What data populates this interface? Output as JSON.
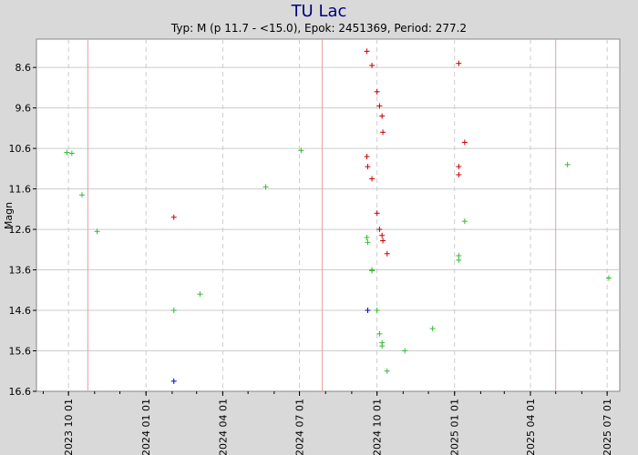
{
  "chart_data": {
    "type": "scatter",
    "title": "TU Lac",
    "subtitle": "Typ: M (p 11.7 - <15.0), Epok: 2451369, Period: 277.2",
    "xlabel": "",
    "ylabel": "Magn",
    "x_axis": "date",
    "xlim": [
      "2023-08-24",
      "2025-07-16"
    ],
    "ylim": [
      16.6,
      7.9
    ],
    "y_inverted": true,
    "grid": true,
    "x_ticks": [
      "2023 10 01",
      "2024 01 01",
      "2024 04 01",
      "2024 07 01",
      "2024 10 01",
      "2025 01 01",
      "2025 04 01",
      "2025 07 01"
    ],
    "x_tick_dates": [
      "2023-10-01",
      "2024-01-01",
      "2024-04-01",
      "2024-07-01",
      "2024-10-01",
      "2025-01-01",
      "2025-04-01",
      "2025-07-01"
    ],
    "y_ticks": [
      "8.6",
      "9.6",
      "10.6",
      "11.6",
      "12.6",
      "13.6",
      "14.6",
      "15.6",
      "16.6"
    ],
    "y_tick_values": [
      8.6,
      9.6,
      10.6,
      11.6,
      12.6,
      13.6,
      14.6,
      15.6,
      16.6
    ],
    "maxima_dates": [
      "2023-10-24",
      "2024-07-28",
      "2025-05-01"
    ],
    "colors": {
      "red": "#c80000",
      "green": "#33bb33",
      "blue": "#0000cc",
      "maxima": "#e8a0a0",
      "grid": "#cccccc"
    },
    "series": [
      {
        "color": "red",
        "points": [
          {
            "x": "2024-02-03",
            "y": 12.3
          },
          {
            "x": "2024-09-19",
            "y": 8.2
          },
          {
            "x": "2024-09-19",
            "y": 10.8
          },
          {
            "x": "2024-09-20",
            "y": 11.05
          },
          {
            "x": "2024-09-25",
            "y": 8.55
          },
          {
            "x": "2024-09-25",
            "y": 11.35
          },
          {
            "x": "2024-10-01",
            "y": 9.2
          },
          {
            "x": "2024-10-01",
            "y": 12.2
          },
          {
            "x": "2024-10-04",
            "y": 9.55
          },
          {
            "x": "2024-10-04",
            "y": 12.6
          },
          {
            "x": "2024-10-07",
            "y": 9.8
          },
          {
            "x": "2024-10-07",
            "y": 12.75
          },
          {
            "x": "2024-10-08",
            "y": 10.2
          },
          {
            "x": "2024-10-08",
            "y": 12.88
          },
          {
            "x": "2024-10-13",
            "y": 13.2
          },
          {
            "x": "2025-01-06",
            "y": 8.5
          },
          {
            "x": "2025-01-06",
            "y": 11.05
          },
          {
            "x": "2025-01-06",
            "y": 11.25
          },
          {
            "x": "2025-01-13",
            "y": 10.45
          }
        ]
      },
      {
        "color": "green",
        "points": [
          {
            "x": "2023-09-29",
            "y": 10.7
          },
          {
            "x": "2023-10-05",
            "y": 10.72
          },
          {
            "x": "2023-10-17",
            "y": 11.75
          },
          {
            "x": "2023-11-04",
            "y": 12.65
          },
          {
            "x": "2024-02-03",
            "y": 14.6
          },
          {
            "x": "2024-03-05",
            "y": 14.2
          },
          {
            "x": "2024-05-22",
            "y": 11.55
          },
          {
            "x": "2024-07-03",
            "y": 10.65
          },
          {
            "x": "2024-09-19",
            "y": 12.8
          },
          {
            "x": "2024-09-20",
            "y": 12.92
          },
          {
            "x": "2024-09-25",
            "y": 13.6
          },
          {
            "x": "2024-09-25",
            "y": 13.62
          },
          {
            "x": "2024-10-01",
            "y": 14.6
          },
          {
            "x": "2024-10-04",
            "y": 15.18
          },
          {
            "x": "2024-10-07",
            "y": 15.4
          },
          {
            "x": "2024-10-07",
            "y": 15.48
          },
          {
            "x": "2024-10-13",
            "y": 16.1
          },
          {
            "x": "2024-11-03",
            "y": 15.6
          },
          {
            "x": "2024-12-06",
            "y": 15.05
          },
          {
            "x": "2025-01-06",
            "y": 13.25
          },
          {
            "x": "2025-01-06",
            "y": 13.36
          },
          {
            "x": "2025-01-13",
            "y": 12.4
          },
          {
            "x": "2025-05-15",
            "y": 11.0
          },
          {
            "x": "2025-07-03",
            "y": 13.8
          }
        ]
      },
      {
        "color": "blue",
        "points": [
          {
            "x": "2024-02-03",
            "y": 16.35
          },
          {
            "x": "2024-09-20",
            "y": 14.6
          }
        ]
      }
    ]
  }
}
